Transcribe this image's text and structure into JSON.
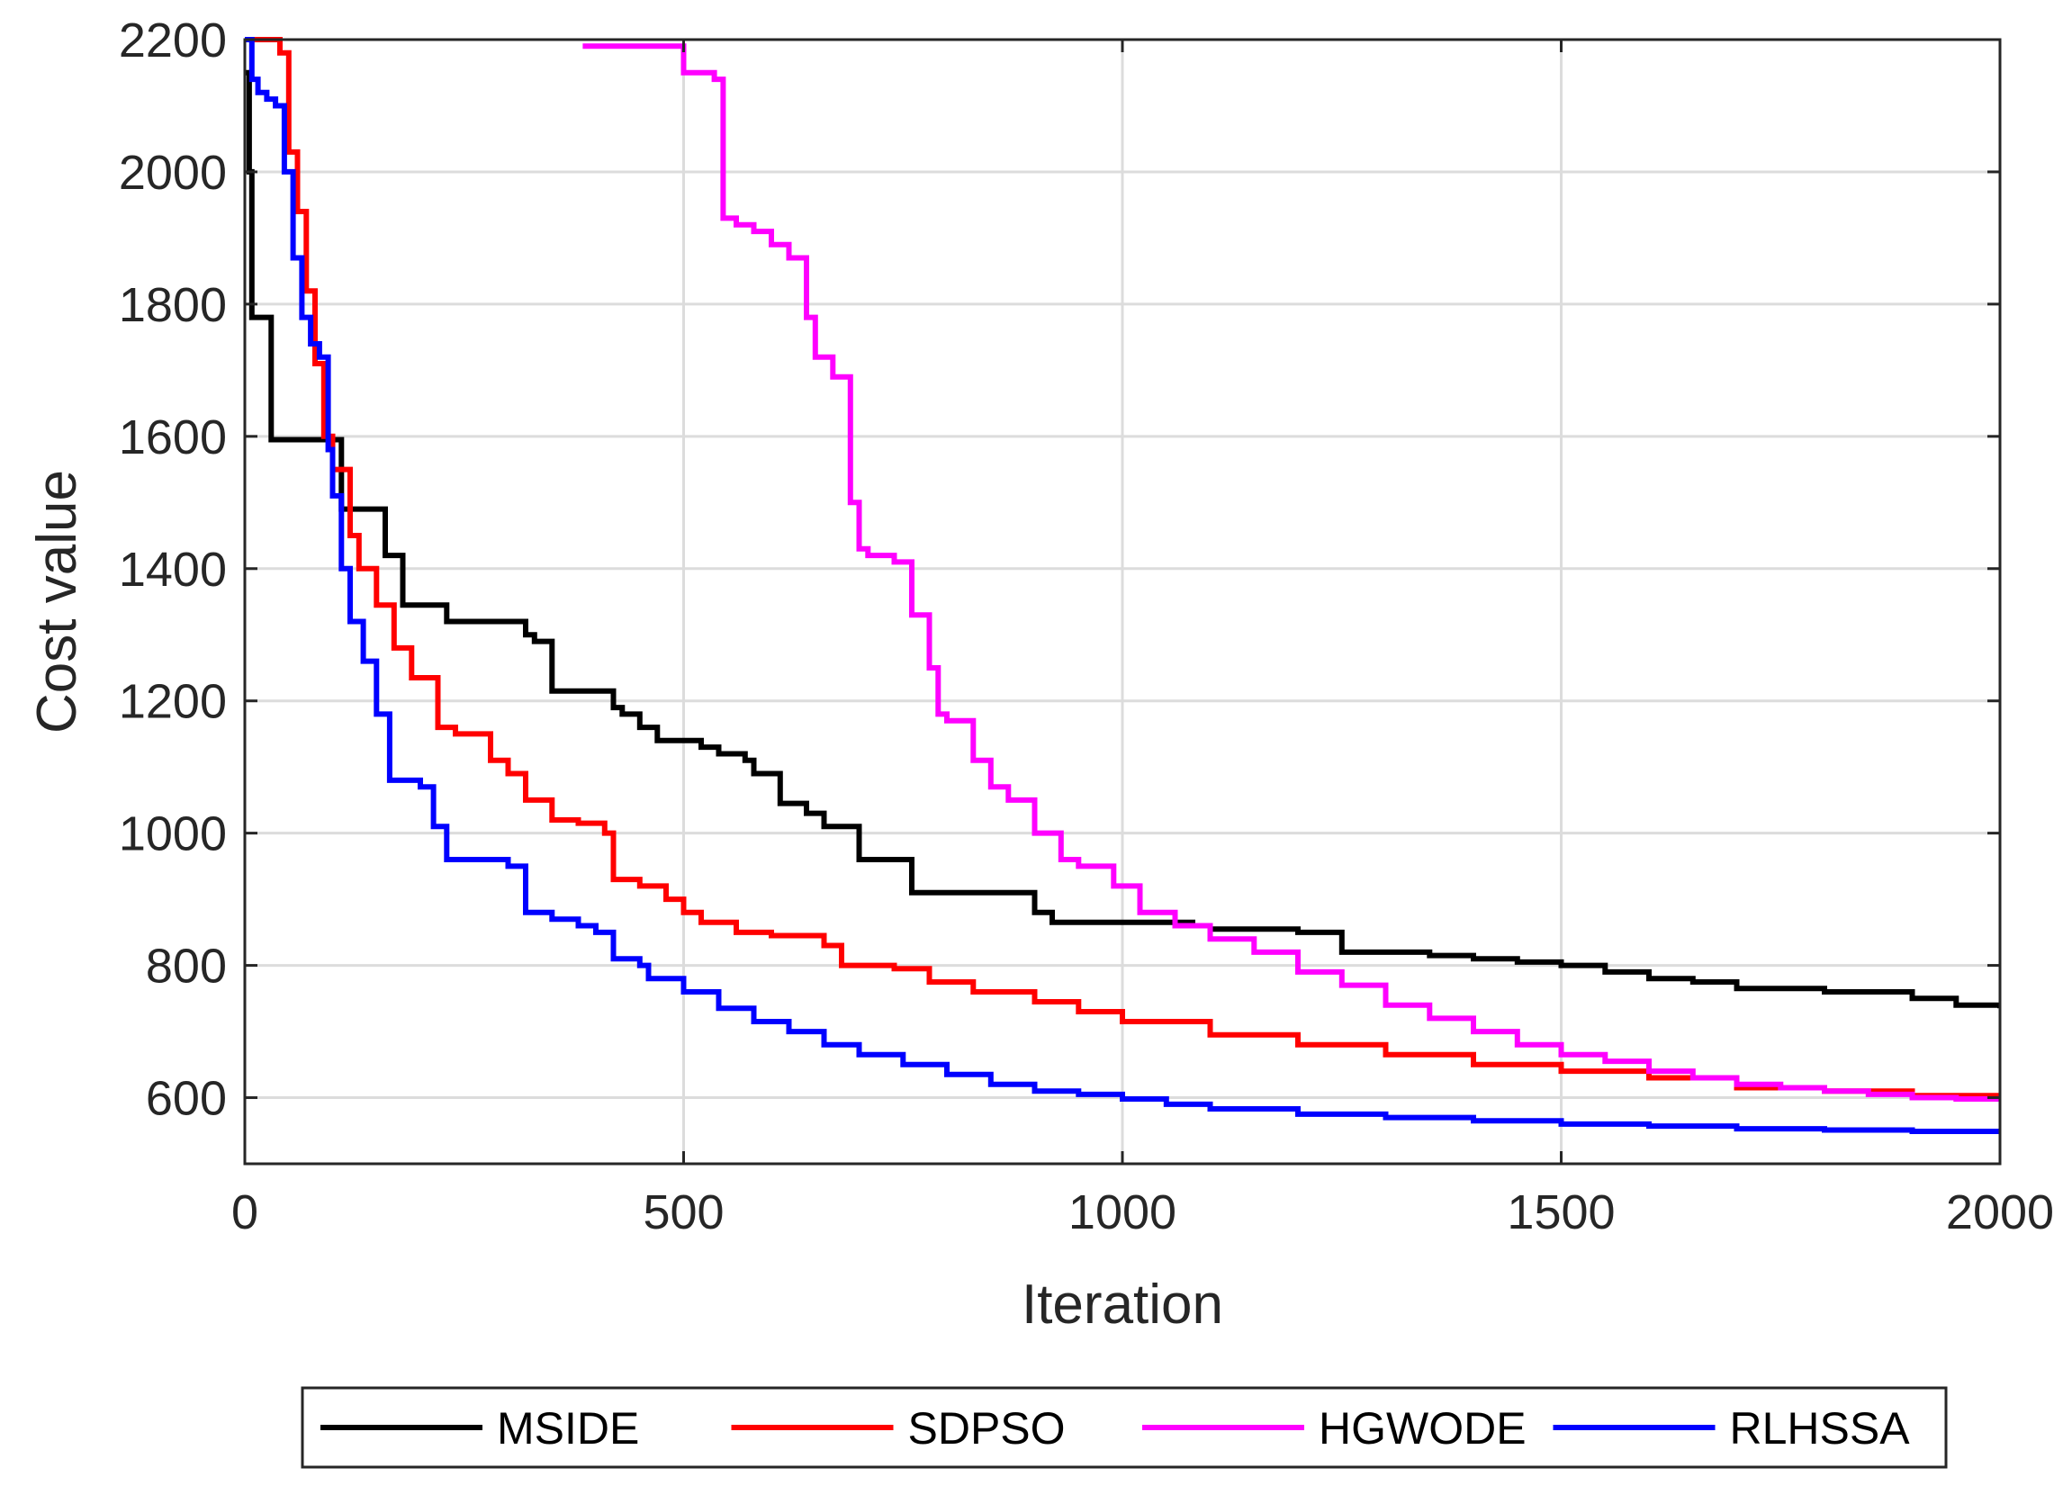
{
  "chart_data": {
    "type": "line",
    "title": "",
    "xlabel": "Iteration",
    "ylabel": "Cost value",
    "xlim": [
      0,
      2000
    ],
    "ylim": [
      500,
      2200
    ],
    "xticks": [
      0,
      500,
      1000,
      1500,
      2000
    ],
    "yticks": [
      600,
      800,
      1000,
      1200,
      1400,
      1600,
      1800,
      2000,
      2200
    ],
    "grid": true,
    "legend_position": "bottom-outside",
    "series": [
      {
        "name": "MSIDE",
        "color": "#000000",
        "x": [
          0,
          5,
          8,
          12,
          18,
          25,
          30,
          80,
          110,
          120,
          160,
          170,
          180,
          210,
          230,
          320,
          330,
          350,
          420,
          430,
          450,
          470,
          480,
          520,
          540,
          570,
          580,
          610,
          640,
          660,
          700,
          760,
          800,
          840,
          900,
          920,
          940,
          1000,
          1080,
          1100,
          1200,
          1250,
          1300,
          1350,
          1400,
          1450,
          1500,
          1550,
          1600,
          1650,
          1700,
          1800,
          1900,
          1950,
          2000
        ],
        "y": [
          2150,
          2000,
          1780,
          1780,
          1780,
          1780,
          1595,
          1595,
          1490,
          1490,
          1420,
          1420,
          1345,
          1345,
          1320,
          1300,
          1290,
          1215,
          1190,
          1180,
          1160,
          1140,
          1140,
          1130,
          1120,
          1110,
          1090,
          1045,
          1030,
          1010,
          960,
          910,
          910,
          910,
          880,
          865,
          865,
          865,
          860,
          855,
          850,
          820,
          820,
          815,
          810,
          805,
          800,
          790,
          780,
          775,
          765,
          760,
          750,
          740,
          735
        ]
      },
      {
        "name": "SDPSO",
        "color": "#ff0000",
        "x": [
          0,
          15,
          25,
          40,
          50,
          60,
          70,
          80,
          90,
          100,
          110,
          120,
          130,
          150,
          170,
          190,
          220,
          240,
          280,
          300,
          320,
          350,
          380,
          410,
          420,
          450,
          480,
          500,
          520,
          560,
          600,
          660,
          680,
          740,
          780,
          830,
          900,
          950,
          1000,
          1100,
          1200,
          1300,
          1400,
          1500,
          1600,
          1700,
          1800,
          1900,
          2000
        ],
        "y": [
          2200,
          2200,
          2200,
          2180,
          2030,
          1940,
          1820,
          1710,
          1600,
          1550,
          1550,
          1450,
          1400,
          1345,
          1280,
          1235,
          1160,
          1150,
          1110,
          1090,
          1050,
          1020,
          1015,
          1000,
          930,
          920,
          900,
          880,
          865,
          850,
          845,
          830,
          800,
          795,
          775,
          760,
          745,
          730,
          715,
          695,
          680,
          665,
          650,
          640,
          630,
          615,
          610,
          603,
          598
        ]
      },
      {
        "name": "HGWODE",
        "color": "#ff00ff",
        "x": [
          385,
          400,
          450,
          500,
          520,
          535,
          545,
          560,
          580,
          600,
          620,
          640,
          650,
          670,
          690,
          700,
          710,
          740,
          760,
          780,
          790,
          800,
          830,
          850,
          870,
          900,
          930,
          950,
          990,
          1020,
          1060,
          1100,
          1150,
          1200,
          1250,
          1300,
          1350,
          1400,
          1450,
          1500,
          1550,
          1600,
          1650,
          1700,
          1750,
          1800,
          1850,
          1900,
          1950,
          2000
        ],
        "y": [
          2190,
          2190,
          2190,
          2150,
          2150,
          2140,
          1930,
          1920,
          1910,
          1890,
          1870,
          1780,
          1720,
          1690,
          1500,
          1430,
          1420,
          1410,
          1330,
          1250,
          1180,
          1170,
          1110,
          1070,
          1050,
          1000,
          960,
          950,
          920,
          880,
          860,
          840,
          820,
          790,
          770,
          740,
          720,
          700,
          680,
          665,
          655,
          640,
          630,
          620,
          615,
          610,
          605,
          600,
          598,
          595
        ]
      },
      {
        "name": "RLHSSA",
        "color": "#0000ff",
        "x": [
          0,
          8,
          15,
          25,
          35,
          45,
          55,
          65,
          75,
          85,
          95,
          100,
          110,
          120,
          135,
          150,
          165,
          200,
          215,
          230,
          250,
          300,
          320,
          350,
          380,
          400,
          420,
          450,
          460,
          500,
          540,
          580,
          620,
          660,
          700,
          750,
          800,
          850,
          900,
          950,
          1000,
          1050,
          1100,
          1200,
          1300,
          1400,
          1500,
          1600,
          1700,
          1800,
          1900,
          2000
        ],
        "y": [
          2200,
          2140,
          2120,
          2110,
          2100,
          2000,
          1870,
          1780,
          1740,
          1720,
          1580,
          1510,
          1400,
          1320,
          1260,
          1180,
          1080,
          1070,
          1010,
          960,
          960,
          950,
          880,
          870,
          860,
          850,
          810,
          800,
          780,
          760,
          735,
          715,
          700,
          680,
          665,
          650,
          635,
          620,
          610,
          605,
          598,
          590,
          583,
          575,
          570,
          565,
          560,
          557,
          553,
          551,
          549,
          547
        ]
      }
    ]
  }
}
